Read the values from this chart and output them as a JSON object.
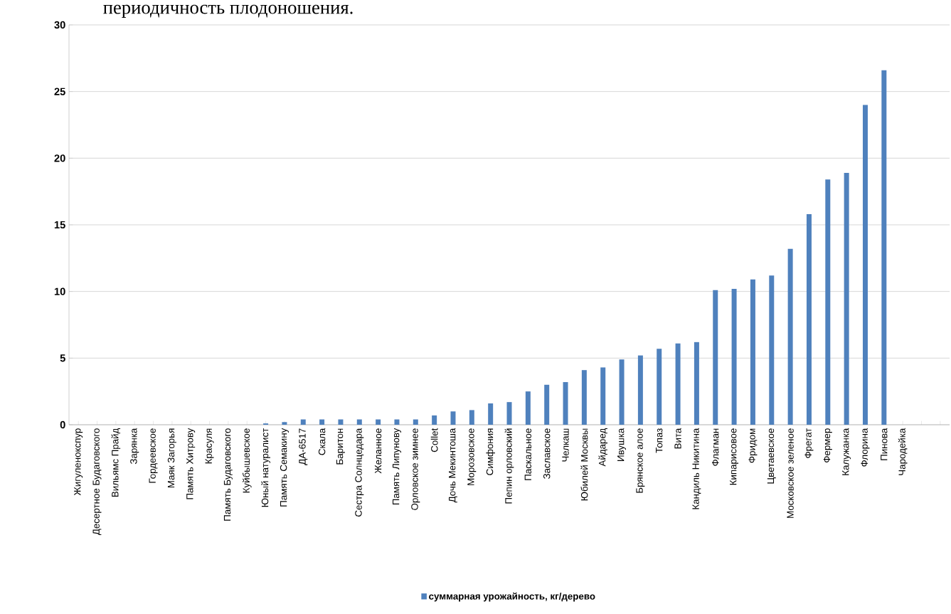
{
  "chart_data": {
    "type": "bar",
    "annotations": [
      "периодичность плодоношения."
    ],
    "categories": [
      "Жигуленокспур",
      "Десертное Будаговского",
      "Вильямс Прайд",
      "Зарянка",
      "Гордеевское",
      "Маяк Загорья",
      "Память Хитрову",
      "Красуля",
      "Память Будаговского",
      "Куйбышевское",
      "Юный натуралист",
      "Память Семакину",
      "ДА-6517",
      "Скала",
      "Баритон",
      "Сестра Солнцедара",
      "Желанное",
      "Память Липунову",
      "Орловское зимнее",
      "Collet",
      "Дочь Мекинтоша",
      "Морозовское",
      "Симфония",
      "Пепин орловский",
      "Паскальное",
      "Заславское",
      "Челкаш",
      "Юбилей Москвы",
      "Айдаред",
      "Ивушка",
      "Брянское алое",
      "Топаз",
      "Вита",
      "Кандиль Никитина",
      "Флагман",
      "Кипарисовое",
      "Фридом",
      "Цветаевское",
      "Московское зеленое",
      "Фрегат",
      "Фермер",
      "Калужанка",
      "Флорина",
      "Пинова",
      "Чародейка",
      null,
      null
    ],
    "series": [
      {
        "name": "суммарная урожайность, кг/дерево",
        "color": "#4f81bd",
        "values": [
          0,
          0,
          0,
          0,
          0,
          0,
          0,
          0,
          0,
          0,
          0.1,
          0.2,
          0.4,
          0.4,
          0.4,
          0.4,
          0.4,
          0.4,
          0.4,
          0.7,
          1.0,
          1.1,
          1.6,
          1.7,
          2.5,
          3.0,
          3.2,
          4.1,
          4.3,
          4.9,
          5.2,
          5.7,
          6.1,
          6.2,
          10.1,
          10.2,
          10.9,
          11.2,
          13.2,
          15.8,
          18.4,
          18.9,
          24.0,
          26.6,
          0,
          null,
          null
        ]
      }
    ],
    "ylim": [
      0,
      30
    ],
    "yticks": [
      0,
      5,
      10,
      15,
      20,
      25,
      30
    ],
    "grid": "y",
    "legend": "bottom"
  }
}
